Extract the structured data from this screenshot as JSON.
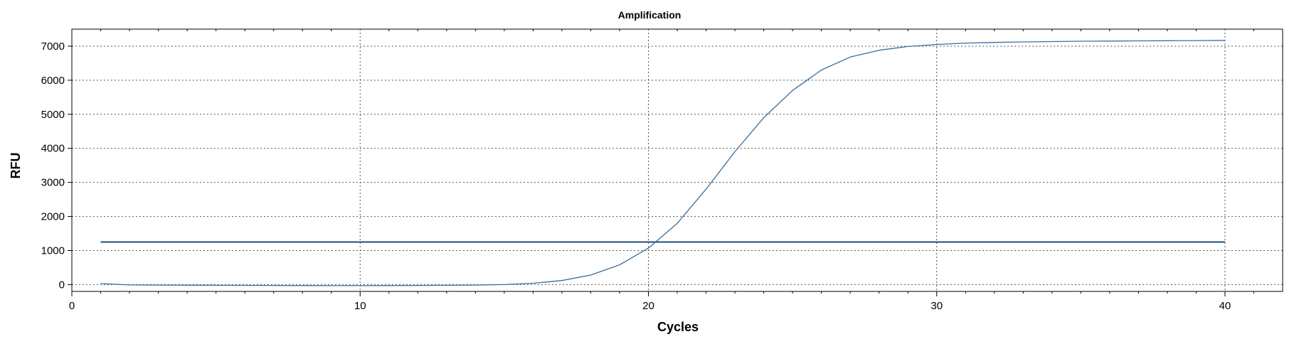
{
  "chart_data": {
    "type": "line",
    "title": "Amplification",
    "xlabel": "Cycles",
    "ylabel": "RFU",
    "xlim": [
      0,
      42
    ],
    "ylim": [
      -200,
      7500
    ],
    "x_ticks": [
      0,
      10,
      20,
      30,
      40
    ],
    "y_ticks": [
      0,
      1000,
      2000,
      3000,
      4000,
      5000,
      6000,
      7000
    ],
    "x_minor_step": 1,
    "grid": true,
    "grid_style": "dotted",
    "colors": {
      "series": "#3b6e9e",
      "threshold": "#1f4e79",
      "grid": "#555555",
      "axis": "#000000"
    },
    "threshold": {
      "y": 1250,
      "x_range": [
        1,
        40
      ]
    },
    "series": [
      {
        "x": [
          1,
          2,
          3,
          4,
          5,
          6,
          7,
          8,
          9,
          10,
          11,
          12,
          13,
          14,
          15,
          16,
          17,
          18,
          19,
          20,
          21,
          22,
          23,
          24,
          25,
          26,
          27,
          28,
          29,
          30,
          31,
          32,
          33,
          34,
          35,
          36,
          37,
          38,
          39,
          40
        ],
        "values": [
          30,
          -10,
          -15,
          -18,
          -20,
          -22,
          -25,
          -28,
          -30,
          -30,
          -28,
          -25,
          -20,
          -15,
          0,
          40,
          120,
          280,
          580,
          1070,
          1800,
          2800,
          3900,
          4900,
          5700,
          6300,
          6680,
          6880,
          6990,
          7050,
          7090,
          7110,
          7125,
          7135,
          7145,
          7150,
          7155,
          7160,
          7165,
          7170
        ]
      }
    ]
  }
}
